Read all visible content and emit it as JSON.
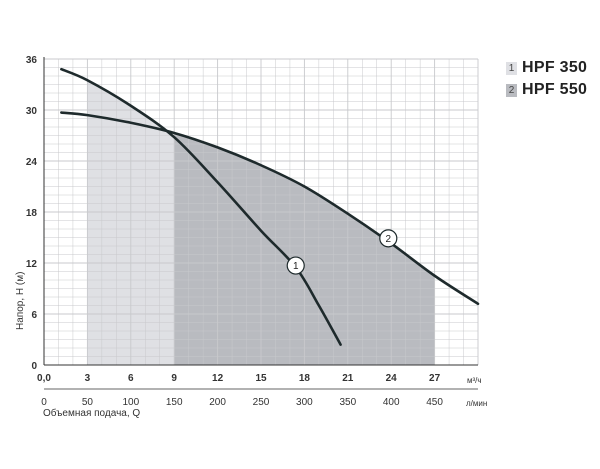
{
  "chart_data": {
    "type": "line",
    "title": "",
    "xlabel": "Объемная подача, Q",
    "ylabel": "Напор, H (м)",
    "x_unit_primary": "м³/ч",
    "x_unit_secondary": "л/мин",
    "xlim": [
      0,
      30
    ],
    "ylim": [
      0,
      36
    ],
    "grid": true,
    "legend_position": "top-right",
    "x_ticks_primary": [
      "0,0",
      "3",
      "6",
      "9",
      "12",
      "15",
      "18",
      "21",
      "24",
      "27"
    ],
    "x_tick_values": [
      0,
      3,
      6,
      9,
      12,
      15,
      18,
      21,
      24,
      27
    ],
    "x_ticks_secondary": [
      "0",
      "50",
      "100",
      "150",
      "200",
      "250",
      "300",
      "350",
      "400",
      "450"
    ],
    "x_ticks_secondary_values": [
      0,
      3,
      6,
      9,
      12,
      15,
      18,
      21,
      24,
      27
    ],
    "y_ticks": [
      "0",
      "6",
      "12",
      "18",
      "24",
      "30",
      "36"
    ],
    "y_tick_values": [
      0,
      6,
      12,
      18,
      24,
      30,
      36
    ],
    "series": [
      {
        "name": "HPF 350",
        "marker": "1",
        "color": "#dfe0e4",
        "x": [
          1.2,
          3,
          6,
          9,
          12,
          15,
          17.4,
          19,
          20.5
        ],
        "y": [
          34.8,
          33.5,
          30.5,
          26.8,
          21.5,
          15.8,
          11.5,
          7,
          2.4
        ],
        "operating_range": [
          3,
          18
        ],
        "label_point": [
          17.4,
          11.7
        ]
      },
      {
        "name": "HPF 550",
        "marker": "2",
        "color": "#b9bbc0",
        "x": [
          1.2,
          3,
          6,
          9,
          12,
          15,
          18,
          21,
          24,
          27,
          30
        ],
        "y": [
          29.7,
          29.4,
          28.5,
          27.3,
          25.6,
          23.5,
          21,
          17.8,
          14.3,
          10.5,
          7.2
        ],
        "operating_range": [
          9,
          27
        ],
        "label_point": [
          23.8,
          14.9
        ]
      }
    ]
  },
  "legend": [
    {
      "num": "1",
      "label": "HPF 350"
    },
    {
      "num": "2",
      "label": "HPF 550"
    }
  ],
  "colors": {
    "curve": "#1e2a2c",
    "grid": "#c8c9cc",
    "axis": "#333333"
  }
}
